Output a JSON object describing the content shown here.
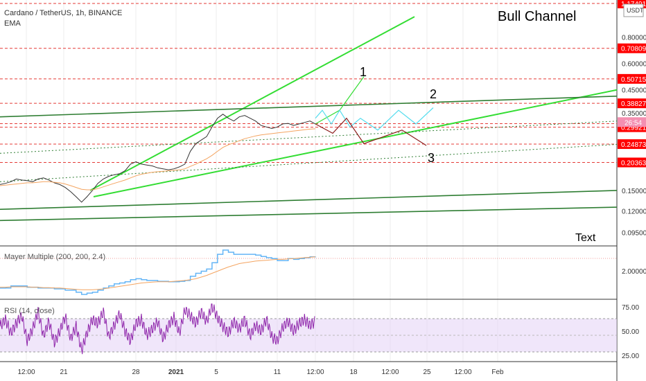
{
  "header": {
    "symbol": "Cardano / TetherUS, 1h, BINANCE",
    "indicator": "EMA",
    "currency": "USDT"
  },
  "annotations": {
    "title": "Bull Channel",
    "text_label": "Text",
    "wave1": "1",
    "wave2": "2",
    "wave3": "3"
  },
  "colors": {
    "green_bright": "#33dd33",
    "green_dark": "#2e7d32",
    "red_dash": "#e53935",
    "price_tag": "#ff0000",
    "price_line": "#333333",
    "ema": "#f4a460",
    "mayer": "#64b5f6",
    "rsi": "#8e24aa",
    "rsi_band": "#e6d6f7",
    "cyan": "#55ddee",
    "maroon": "#8b1a1a"
  },
  "chart_data": [
    {
      "type": "line",
      "name": "main-price-pane",
      "y_scale": "log",
      "ylim": [
        0.085,
        1.2
      ],
      "x_ticks": [
        "12:00",
        "21",
        "28",
        "2021",
        "5",
        "11",
        "12:00",
        "18",
        "12:00",
        "25",
        "12:00",
        "Feb"
      ],
      "y_ticks": [
        "0.80000",
        "0.60000",
        "0.45000",
        "0.35000",
        "0.15000",
        "0.12000",
        "0.09500"
      ],
      "price_tags": [
        "1.17491",
        "0.70809",
        "0.50715",
        "0.38827",
        "0.31089",
        "26:54",
        "0.29921",
        "0.24873",
        "0.20363"
      ],
      "series": [
        {
          "values": [
            0.16,
            0.162,
            0.165,
            0.17,
            0.168,
            0.167,
            0.165,
            0.17,
            0.172,
            0.168,
            0.163,
            0.16,
            0.155,
            0.148,
            0.14,
            0.132,
            0.14,
            0.15,
            0.162,
            0.17,
            0.175,
            0.178,
            0.18,
            0.186,
            0.2,
            0.205,
            0.2,
            0.198,
            0.196,
            0.192,
            0.19,
            0.188,
            0.19,
            0.194,
            0.2,
            0.23,
            0.25,
            0.26,
            0.27,
            0.3,
            0.33,
            0.345,
            0.33,
            0.32,
            0.335,
            0.34,
            0.33,
            0.32,
            0.305,
            0.3,
            0.295,
            0.3,
            0.31,
            0.312,
            0.305,
            0.31,
            0.315,
            0.32,
            0.31
          ]
        },
        {
          "values": [
            0.158,
            0.159,
            0.16,
            0.161,
            0.162,
            0.163,
            0.163,
            0.164,
            0.165,
            0.165,
            0.164,
            0.163,
            0.161,
            0.158,
            0.155,
            0.152,
            0.151,
            0.151,
            0.153,
            0.156,
            0.159,
            0.162,
            0.165,
            0.168,
            0.172,
            0.176,
            0.179,
            0.181,
            0.183,
            0.184,
            0.185,
            0.186,
            0.187,
            0.188,
            0.19,
            0.195,
            0.2,
            0.206,
            0.212,
            0.22,
            0.23,
            0.24,
            0.247,
            0.252,
            0.258,
            0.264,
            0.268,
            0.272,
            0.275,
            0.277,
            0.279,
            0.281,
            0.283,
            0.285,
            0.287,
            0.289,
            0.291,
            0.293,
            0.294
          ]
        }
      ]
    },
    {
      "type": "line",
      "name": "mayer-multiple-pane",
      "title": "Mayer Multiple (200, 200, 2.4)",
      "y_ticks": [
        "2.00000"
      ],
      "series": [
        {
          "values": [
            0.5,
            0.5,
            0.55,
            0.55,
            0.55,
            0.52,
            0.52,
            0.5,
            0.5,
            0.5,
            0.48,
            0.48,
            0.45,
            0.45,
            0.4,
            0.35,
            0.38,
            0.4,
            0.45,
            0.5,
            0.55,
            0.6,
            0.62,
            0.65,
            0.7,
            0.72,
            0.7,
            0.68,
            0.68,
            0.66,
            0.66,
            0.65,
            0.65,
            0.66,
            0.68,
            0.78,
            0.85,
            0.9,
            0.95,
            1.1,
            1.3,
            1.4,
            1.35,
            1.3,
            1.3,
            1.3,
            1.3,
            1.28,
            1.25,
            1.22,
            1.2,
            1.15,
            1.15,
            1.2,
            1.18,
            1.2,
            1.22,
            1.24,
            1.25
          ]
        },
        {
          "values": [
            0.52,
            0.52,
            0.53,
            0.53,
            0.53,
            0.53,
            0.52,
            0.52,
            0.51,
            0.51,
            0.5,
            0.5,
            0.49,
            0.48,
            0.47,
            0.46,
            0.46,
            0.46,
            0.47,
            0.48,
            0.5,
            0.52,
            0.54,
            0.56,
            0.58,
            0.6,
            0.62,
            0.63,
            0.64,
            0.65,
            0.65,
            0.65,
            0.66,
            0.67,
            0.68,
            0.7,
            0.72,
            0.76,
            0.8,
            0.85,
            0.9,
            0.95,
            1.0,
            1.04,
            1.08,
            1.1,
            1.12,
            1.14,
            1.15,
            1.16,
            1.17,
            1.18,
            1.18,
            1.19,
            1.2,
            1.21,
            1.22,
            1.23,
            1.24
          ]
        }
      ]
    },
    {
      "type": "line",
      "name": "rsi-pane",
      "title": "RSI (14, close)",
      "ylim": [
        20,
        80
      ],
      "y_ticks": [
        "75.00",
        "50.00",
        "25.00"
      ],
      "series": [
        {
          "values": [
            55,
            62,
            48,
            58,
            66,
            40,
            52,
            70,
            45,
            60,
            38,
            50,
            65,
            42,
            55,
            30,
            48,
            62,
            58,
            70,
            44,
            56,
            68,
            50,
            40,
            58,
            62,
            46,
            52,
            60,
            42,
            56,
            64,
            48,
            72,
            66,
            58,
            70,
            60,
            76,
            64,
            55,
            48,
            60,
            52,
            62,
            45,
            56,
            50,
            62,
            44,
            40,
            54,
            60,
            50,
            58,
            62,
            56,
            60
          ]
        }
      ]
    }
  ]
}
